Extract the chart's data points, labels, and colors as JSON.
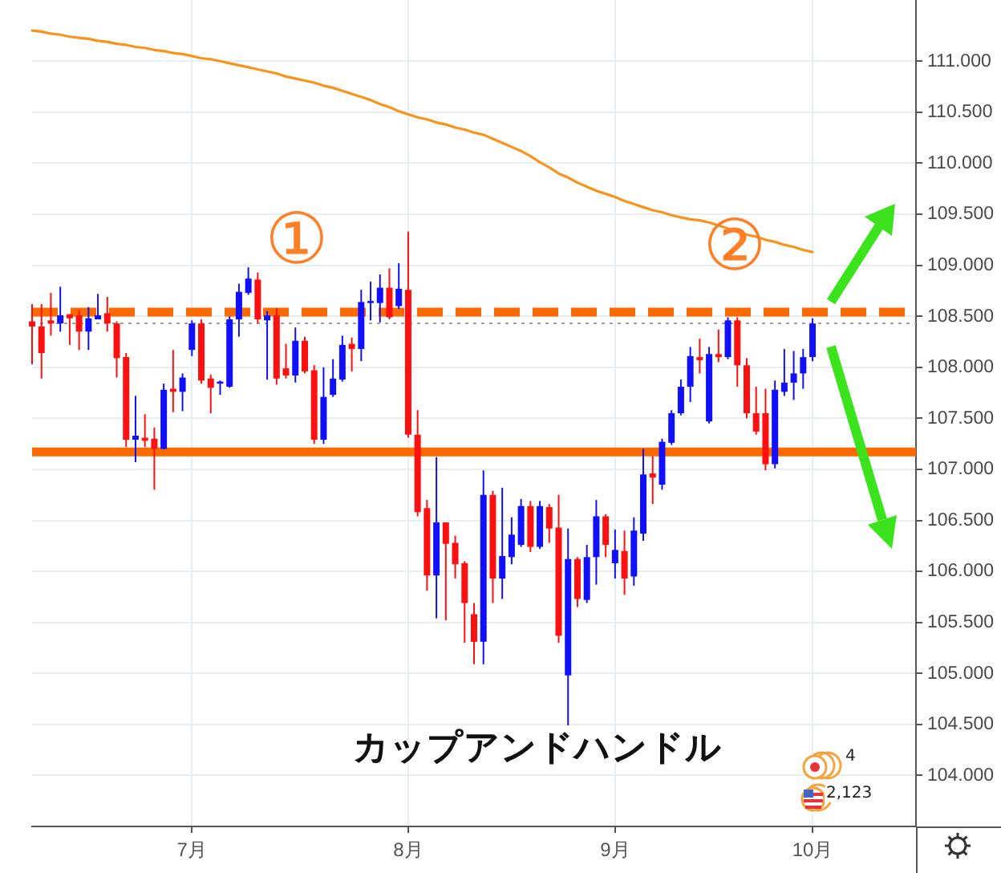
{
  "chart_data": {
    "type": "candlestick",
    "title": "カップアンドハンドル",
    "categories": [
      null,
      null,
      null,
      null,
      null,
      null,
      null,
      null,
      null,
      null,
      null,
      null,
      null,
      null,
      null,
      null,
      null,
      "7月",
      null,
      null,
      null,
      null,
      null,
      null,
      null,
      null,
      null,
      null,
      null,
      null,
      null,
      null,
      null,
      null,
      null,
      null,
      null,
      null,
      null,
      null,
      "8月",
      null,
      null,
      null,
      null,
      null,
      null,
      null,
      null,
      null,
      null,
      null,
      null,
      null,
      null,
      null,
      null,
      null,
      null,
      null,
      null,
      null,
      "9月",
      null,
      null,
      null,
      null,
      null,
      null,
      null,
      null,
      null,
      null,
      null,
      null,
      null,
      null,
      null,
      null,
      null,
      null,
      null,
      null,
      "10月",
      null,
      null,
      null,
      null,
      null,
      null,
      null,
      null,
      null,
      null,
      null
    ],
    "ohlc": [
      [
        108.45,
        108.62,
        108.03,
        108.4
      ],
      [
        108.4,
        108.62,
        107.89,
        108.14
      ],
      [
        108.46,
        108.73,
        108.31,
        108.43
      ],
      [
        108.43,
        108.79,
        108.35,
        108.51
      ],
      [
        108.52,
        108.52,
        108.22,
        108.48
      ],
      [
        108.51,
        108.56,
        108.17,
        108.35
      ],
      [
        108.35,
        108.59,
        108.17,
        108.48
      ],
      [
        108.47,
        108.72,
        108.47,
        108.51
      ],
      [
        108.53,
        108.69,
        108.35,
        108.43
      ],
      [
        108.43,
        108.45,
        107.9,
        108.09
      ],
      [
        108.1,
        108.14,
        107.22,
        107.29
      ],
      [
        107.29,
        107.72,
        107.07,
        107.33
      ],
      [
        107.31,
        107.54,
        107.22,
        107.28
      ],
      [
        107.3,
        107.41,
        106.8,
        107.2
      ],
      [
        107.2,
        107.84,
        107.2,
        107.78
      ],
      [
        107.79,
        108.17,
        107.56,
        107.76
      ],
      [
        107.76,
        107.94,
        107.57,
        107.9
      ],
      [
        108.17,
        108.46,
        108.11,
        108.43
      ],
      [
        108.43,
        108.47,
        107.84,
        107.87
      ],
      [
        107.89,
        107.93,
        107.55,
        107.8
      ],
      [
        107.84,
        107.87,
        107.73,
        107.86
      ],
      [
        107.81,
        108.5,
        107.8,
        108.47
      ],
      [
        108.47,
        108.82,
        108.3,
        108.74
      ],
      [
        108.73,
        108.98,
        108.71,
        108.87
      ],
      [
        108.86,
        108.93,
        108.43,
        108.47
      ],
      [
        108.46,
        108.55,
        107.88,
        108.51
      ],
      [
        108.51,
        108.58,
        107.83,
        107.89
      ],
      [
        107.99,
        108.23,
        107.89,
        107.92
      ],
      [
        107.92,
        108.39,
        107.85,
        108.26
      ],
      [
        108.26,
        108.3,
        107.94,
        107.96
      ],
      [
        107.97,
        108.02,
        107.25,
        107.29
      ],
      [
        107.29,
        108.0,
        107.25,
        107.71
      ],
      [
        107.73,
        108.08,
        107.71,
        107.89
      ],
      [
        107.88,
        108.31,
        107.86,
        108.22
      ],
      [
        108.23,
        108.29,
        107.96,
        108.18
      ],
      [
        108.18,
        108.76,
        108.06,
        108.64
      ],
      [
        108.63,
        108.84,
        108.46,
        108.65
      ],
      [
        108.63,
        108.91,
        108.44,
        108.78
      ],
      [
        108.78,
        108.97,
        108.47,
        108.49
      ],
      [
        108.6,
        109.02,
        108.57,
        108.77
      ],
      [
        108.76,
        109.33,
        107.31,
        107.34
      ],
      [
        107.34,
        107.58,
        106.54,
        106.58
      ],
      [
        106.62,
        106.7,
        105.81,
        105.96
      ],
      [
        105.96,
        107.12,
        105.54,
        106.48
      ],
      [
        106.48,
        106.48,
        105.52,
        106.27
      ],
      [
        106.28,
        106.35,
        105.93,
        106.07
      ],
      [
        106.08,
        106.1,
        105.3,
        105.69
      ],
      [
        105.58,
        105.69,
        105.09,
        105.31
      ],
      [
        105.31,
        106.99,
        105.09,
        106.75
      ],
      [
        106.75,
        106.79,
        105.69,
        105.93
      ],
      [
        105.93,
        106.82,
        105.73,
        106.15
      ],
      [
        106.14,
        106.53,
        106.07,
        106.36
      ],
      [
        106.26,
        106.71,
        106.24,
        106.64
      ],
      [
        106.64,
        106.69,
        106.19,
        106.24
      ],
      [
        106.24,
        106.69,
        106.22,
        106.64
      ],
      [
        106.63,
        106.66,
        106.28,
        106.42
      ],
      [
        106.43,
        106.75,
        105.3,
        105.37
      ],
      [
        104.98,
        106.42,
        104.49,
        106.12
      ],
      [
        106.12,
        106.14,
        105.65,
        105.73
      ],
      [
        105.72,
        106.26,
        105.69,
        106.14
      ],
      [
        106.14,
        106.7,
        105.87,
        106.54
      ],
      [
        106.54,
        106.56,
        106.14,
        106.26
      ],
      [
        106.08,
        106.41,
        105.93,
        106.21
      ],
      [
        106.2,
        106.4,
        105.77,
        105.93
      ],
      [
        105.95,
        106.53,
        105.86,
        106.4
      ],
      [
        106.37,
        107.2,
        106.3,
        106.95
      ],
      [
        106.96,
        107.13,
        106.66,
        106.92
      ],
      [
        106.85,
        107.3,
        106.8,
        107.27
      ],
      [
        107.26,
        107.58,
        107.24,
        107.55
      ],
      [
        107.55,
        107.88,
        107.53,
        107.81
      ],
      [
        107.81,
        108.2,
        107.66,
        108.11
      ],
      [
        108.1,
        108.28,
        107.94,
        108.07
      ],
      [
        107.47,
        108.2,
        107.45,
        108.13
      ],
      [
        108.13,
        108.37,
        108.05,
        108.1
      ],
      [
        108.1,
        108.49,
        108.08,
        108.46
      ],
      [
        108.46,
        108.49,
        107.81,
        108.02
      ],
      [
        108.02,
        108.09,
        107.5,
        107.55
      ],
      [
        107.55,
        107.81,
        107.34,
        107.37
      ],
      [
        107.55,
        107.79,
        106.99,
        107.05
      ],
      [
        107.05,
        107.87,
        107.01,
        107.78
      ],
      [
        107.76,
        108.18,
        107.72,
        107.85
      ],
      [
        107.85,
        108.16,
        107.68,
        107.94
      ],
      [
        107.94,
        108.18,
        107.79,
        108.1
      ],
      [
        108.1,
        108.48,
        108.06,
        108.43
      ],
      null,
      null,
      null,
      null,
      null,
      null,
      null,
      null,
      null,
      null,
      null
    ],
    "colors": [
      "#ff1010",
      "#ff1010",
      "#ff1010",
      "#1010ff",
      "#ff1010",
      "#ff1010",
      "#1010ff",
      "#1010ff",
      "#ff1010",
      "#ff1010",
      "#ff1010",
      "#1010ff",
      "#ff1010",
      "#ff1010",
      "#1010ff",
      "#ff1010",
      "#1010ff",
      "#1010ff",
      "#ff1010",
      "#ff1010",
      "#1010ff",
      "#1010ff",
      "#1010ff",
      "#1010ff",
      "#ff1010",
      "#1010ff",
      "#ff1010",
      "#ff1010",
      "#1010ff",
      "#ff1010",
      "#ff1010",
      "#1010ff",
      "#1010ff",
      "#1010ff",
      "#ff1010",
      "#1010ff",
      "#1010ff",
      "#1010ff",
      "#ff1010",
      "#1010ff",
      "#ff1010",
      "#ff1010",
      "#ff1010",
      "#1010ff",
      "#ff1010",
      "#ff1010",
      "#ff1010",
      "#ff1010",
      "#1010ff",
      "#ff1010",
      "#1010ff",
      "#1010ff",
      "#1010ff",
      "#ff1010",
      "#1010ff",
      "#ff1010",
      "#ff1010",
      "#1010ff",
      "#ff1010",
      "#1010ff",
      "#1010ff",
      "#ff1010",
      "#1010ff",
      "#ff1010",
      "#1010ff",
      "#1010ff",
      "#ff1010",
      "#1010ff",
      "#1010ff",
      "#1010ff",
      "#1010ff",
      "#ff1010",
      "#1010ff",
      "#ff1010",
      "#1010ff",
      "#ff1010",
      "#ff1010",
      "#ff1010",
      "#ff1010",
      "#1010ff",
      "#1010ff",
      "#1010ff",
      "#1010ff",
      "#1010ff",
      null,
      null,
      null,
      null,
      null,
      null,
      null,
      null,
      null,
      null,
      null
    ],
    "series": [
      {
        "type": "line",
        "color": "#f7941d",
        "values": [
          111.3,
          111.29,
          111.27,
          111.26,
          111.24,
          111.23,
          111.22,
          111.2,
          111.19,
          111.17,
          111.16,
          111.14,
          111.13,
          111.11,
          111.1,
          111.08,
          111.07,
          111.05,
          111.03,
          111.02,
          111.0,
          110.98,
          110.96,
          110.94,
          110.92,
          110.9,
          110.88,
          110.85,
          110.83,
          110.81,
          110.79,
          110.76,
          110.74,
          110.71,
          110.68,
          110.65,
          110.62,
          110.58,
          110.55,
          110.51,
          110.48,
          110.45,
          110.43,
          110.4,
          110.38,
          110.35,
          110.33,
          110.3,
          110.28,
          110.24,
          110.2,
          110.16,
          110.12,
          110.07,
          110.01,
          109.96,
          109.9,
          109.86,
          109.81,
          109.77,
          109.73,
          109.7,
          109.67,
          109.63,
          109.6,
          109.57,
          109.54,
          109.52,
          109.49,
          109.47,
          109.45,
          109.44,
          109.42,
          109.39,
          109.36,
          109.33,
          109.3,
          109.28,
          109.25,
          109.23,
          109.2,
          109.18,
          109.15,
          109.13,
          null,
          null,
          null,
          null,
          null,
          null,
          null,
          null,
          null,
          null,
          null
        ]
      }
    ],
    "ylim": [
      103.5,
      111.6
    ],
    "yticks": [
      {
        "value": 104,
        "label": "104.000"
      },
      {
        "value": 104.5,
        "label": "104.500"
      },
      {
        "value": 105,
        "label": "105.000"
      },
      {
        "value": 105.5,
        "label": "105.500"
      },
      {
        "value": 106,
        "label": "106.000"
      },
      {
        "value": 106.5,
        "label": "106.500"
      },
      {
        "value": 107,
        "label": "107.000"
      },
      {
        "value": 107.5,
        "label": "107.500"
      },
      {
        "value": 108,
        "label": "108.000"
      },
      {
        "value": 108.5,
        "label": "108.500"
      },
      {
        "value": 109,
        "label": "109.000"
      },
      {
        "value": 109.5,
        "label": "109.500"
      },
      {
        "value": 110,
        "label": "110.000"
      },
      {
        "value": 110.5,
        "label": "110.500"
      },
      {
        "value": 111,
        "label": "111.000"
      }
    ],
    "ref_lines": [
      {
        "axis": "y",
        "value": 108.54,
        "color": "#ff6a00",
        "line_style": "dashed"
      },
      {
        "axis": "y",
        "value": 107.17,
        "color": "#ff6a00",
        "line_style": "solid"
      },
      {
        "axis": "y",
        "value": 108.43,
        "color": "#a0a0a0",
        "line_style": "dotted"
      }
    ],
    "annotations": [
      "①",
      "②",
      "4",
      "2,123"
    ],
    "grid": true
  }
}
